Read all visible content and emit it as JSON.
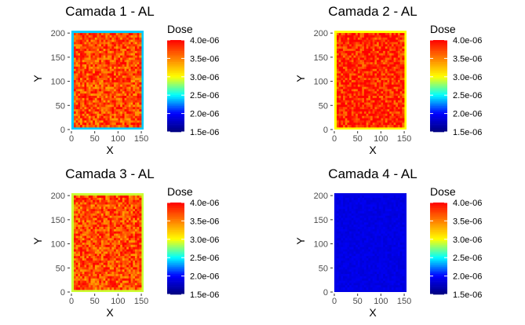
{
  "chart_data": [
    {
      "type": "heatmap",
      "title": "Camada 1 - AL",
      "xlabel": "X",
      "ylabel": "Y",
      "xlim": [
        0,
        160
      ],
      "ylim": [
        0,
        210
      ],
      "x_ticks": [
        "0",
        "50",
        "100",
        "150"
      ],
      "y_ticks": [
        "0",
        "50",
        "100",
        "150",
        "200"
      ],
      "legend_title": "Dose",
      "legend_labels": [
        "4.0e-06",
        "3.5e-06",
        "3.0e-06",
        "2.5e-06",
        "2.0e-06",
        "1.5e-06"
      ],
      "color_range": [
        1.5e-06,
        4e-06
      ],
      "region": {
        "x": [
          0,
          155
        ],
        "y": [
          0,
          205
        ]
      },
      "core_mean": 3.7e-06,
      "edge_value": 2.4e-06
    },
    {
      "type": "heatmap",
      "title": "Camada 2 - AL",
      "xlabel": "X",
      "ylabel": "Y",
      "xlim": [
        0,
        160
      ],
      "ylim": [
        0,
        210
      ],
      "x_ticks": [
        "0",
        "50",
        "100",
        "150"
      ],
      "y_ticks": [
        "0",
        "50",
        "100",
        "150",
        "200"
      ],
      "legend_title": "Dose",
      "legend_labels": [
        "4.0e-06",
        "3.5e-06",
        "3.0e-06",
        "2.5e-06",
        "2.0e-06",
        "1.5e-06"
      ],
      "color_range": [
        1.5e-06,
        4e-06
      ],
      "region": {
        "x": [
          0,
          155
        ],
        "y": [
          0,
          205
        ]
      },
      "core_mean": 3.85e-06,
      "edge_value": 3e-06
    },
    {
      "type": "heatmap",
      "title": "Camada 3 - AL",
      "xlabel": "X",
      "ylabel": "Y",
      "xlim": [
        0,
        160
      ],
      "ylim": [
        0,
        210
      ],
      "x_ticks": [
        "0",
        "50",
        "100",
        "150"
      ],
      "y_ticks": [
        "0",
        "50",
        "100",
        "150",
        "200"
      ],
      "legend_title": "Dose",
      "legend_labels": [
        "4.0e-06",
        "3.5e-06",
        "3.0e-06",
        "2.5e-06",
        "2.0e-06",
        "1.5e-06"
      ],
      "color_range": [
        1.5e-06,
        4e-06
      ],
      "region": {
        "x": [
          0,
          155
        ],
        "y": [
          0,
          205
        ]
      },
      "core_mean": 3.7e-06,
      "edge_value": 2.9e-06
    },
    {
      "type": "heatmap",
      "title": "Camada 4 - AL",
      "xlabel": "X",
      "ylabel": "Y",
      "xlim": [
        0,
        160
      ],
      "ylim": [
        0,
        210
      ],
      "x_ticks": [
        "0",
        "50",
        "100",
        "150"
      ],
      "y_ticks": [
        "0",
        "50",
        "100",
        "150",
        "200"
      ],
      "legend_title": "Dose",
      "legend_labels": [
        "4.0e-06",
        "3.5e-06",
        "3.0e-06",
        "2.5e-06",
        "2.0e-06",
        "1.5e-06"
      ],
      "color_range": [
        1.5e-06,
        4e-06
      ],
      "region": {
        "x": [
          0,
          155
        ],
        "y": [
          0,
          205
        ]
      },
      "core_mean": 1.9e-06,
      "edge_value": 1.9e-06
    }
  ],
  "colors": {
    "scale": [
      "#00007f",
      "#0000ff",
      "#00ffff",
      "#ffff00",
      "#ff7f00",
      "#ff0000"
    ]
  }
}
